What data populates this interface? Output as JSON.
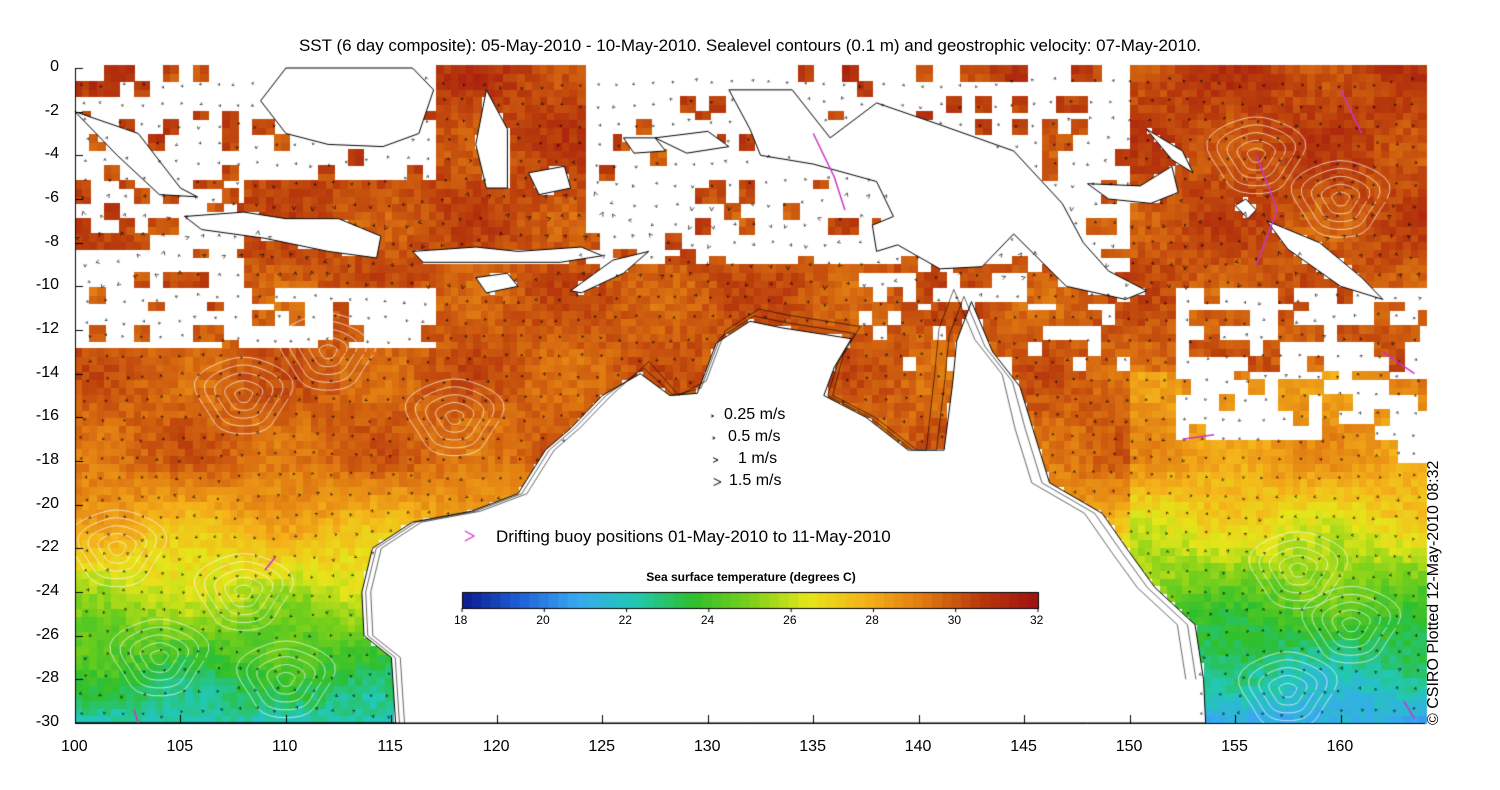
{
  "title": "SST (6 day composite): 05-May-2010 - 10-May-2010. Sealevel contours (0.1 m) and geostrophic velocity: 07-May-2010.",
  "credit": "© CSIRO Plotted 12-May-2010 08:32",
  "axes": {
    "x_ticks": [
      100,
      105,
      110,
      115,
      120,
      125,
      130,
      135,
      140,
      145,
      150,
      155,
      160
    ],
    "y_ticks": [
      0,
      -2,
      -4,
      -6,
      -8,
      -10,
      -12,
      -14,
      -16,
      -18,
      -20,
      -22,
      -24,
      -26,
      -28,
      -30
    ],
    "x_range": [
      100,
      164
    ],
    "y_range": [
      -30,
      0
    ]
  },
  "velocity_legend": [
    {
      "label": "0.25 m/s",
      "speed": 0.25
    },
    {
      "label": "0.5 m/s",
      "speed": 0.5
    },
    {
      "label": "1 m/s",
      "speed": 1
    },
    {
      "label": "1.5 m/s",
      "speed": 1.5
    }
  ],
  "buoy_legend": {
    "label": "Drifting buoy positions 01-May-2010 to 11-May-2010",
    "marker_color": "#cc33cc"
  },
  "colorbar": {
    "title": "Sea surface temperature (degrees C)",
    "range": [
      18,
      32
    ],
    "ticks": [
      18,
      20,
      22,
      24,
      26,
      28,
      30,
      32
    ],
    "colors": [
      "#0a1a8c",
      "#1f5fd6",
      "#38a9f0",
      "#22c8b4",
      "#2ebf2e",
      "#7ad01a",
      "#e6e61a",
      "#f5b21a",
      "#e07a12",
      "#b83a0c",
      "#a01010"
    ]
  }
}
